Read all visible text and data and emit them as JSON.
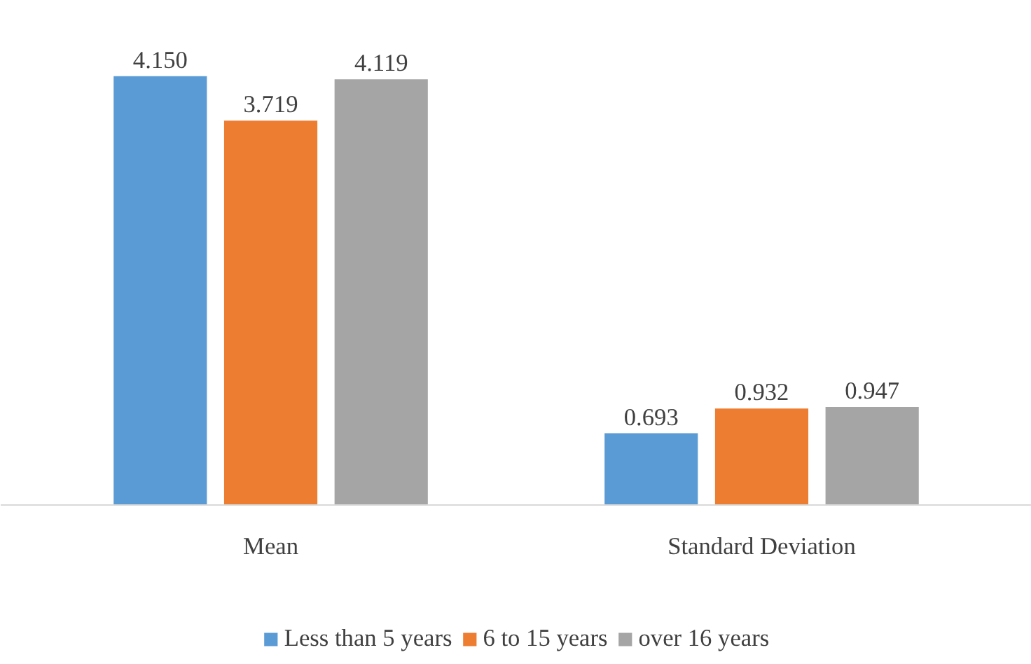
{
  "chart_data": {
    "type": "bar",
    "categories": [
      "Mean",
      "Standard Deviation"
    ],
    "series": [
      {
        "name": "Less than 5 years",
        "color": "#5b9bd5",
        "values": [
          4.15,
          0.693
        ],
        "value_labels": [
          "4.150",
          "0.693"
        ]
      },
      {
        "name": "6 to 15 years",
        "color": "#ed7d31",
        "values": [
          3.719,
          0.932
        ],
        "value_labels": [
          "3.719",
          "0.932"
        ]
      },
      {
        "name": "over 16 years",
        "color": "#a5a5a5",
        "values": [
          4.119,
          0.947
        ],
        "value_labels": [
          "4.119",
          "0.947"
        ]
      }
    ],
    "legend": "bottom",
    "grid": false
  }
}
